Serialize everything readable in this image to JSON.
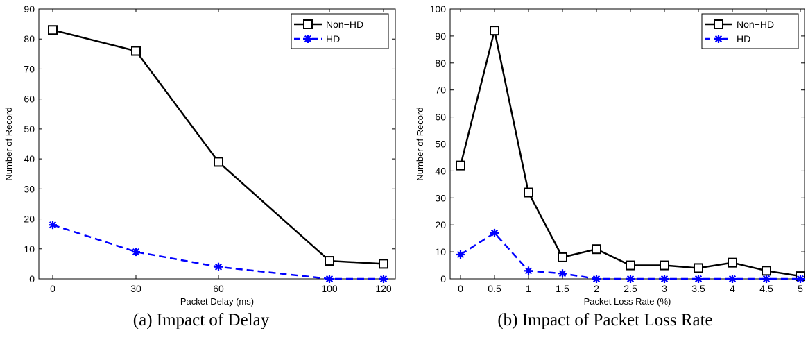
{
  "chart_data": [
    {
      "type": "line",
      "caption": "(a) Impact of Delay",
      "xlabel": "Packet Delay (ms)",
      "ylabel": "Number of Record",
      "x": [
        0,
        30,
        60,
        100,
        120
      ],
      "x_tick_labels": [
        "0",
        "30",
        "60",
        "100",
        "120"
      ],
      "x_scale": "categorical",
      "ylim": [
        0,
        90
      ],
      "y_ticks": [
        0,
        10,
        20,
        30,
        40,
        50,
        60,
        70,
        80,
        90
      ],
      "legend_position": "top-right",
      "series": [
        {
          "name": "Non−HD",
          "values": [
            83,
            76,
            39,
            6,
            5
          ],
          "color": "#000000",
          "line": "solid",
          "marker": "square"
        },
        {
          "name": "HD",
          "values": [
            18,
            9,
            4,
            0,
            0
          ],
          "color": "#0000ff",
          "line": "dashed",
          "marker": "asterisk"
        }
      ]
    },
    {
      "type": "line",
      "caption": "(b) Impact of Packet Loss Rate",
      "xlabel": "Packet Loss Rate (%)",
      "ylabel": "Number of Record",
      "x": [
        0,
        0.5,
        1,
        1.5,
        2,
        2.5,
        3,
        3.5,
        4,
        4.5,
        5
      ],
      "x_tick_labels": [
        "0",
        "0.5",
        "1",
        "1.5",
        "2",
        "2.5",
        "3",
        "3.5",
        "4",
        "4.5",
        "5"
      ],
      "x_scale": "linear",
      "xlim": [
        -0.1,
        5
      ],
      "ylim": [
        0,
        100
      ],
      "y_ticks": [
        0,
        10,
        20,
        30,
        40,
        50,
        60,
        70,
        80,
        90,
        100
      ],
      "legend_position": "top-right",
      "series": [
        {
          "name": "Non−HD",
          "values": [
            42,
            92,
            32,
            8,
            11,
            5,
            5,
            4,
            6,
            3,
            1
          ],
          "color": "#000000",
          "line": "solid",
          "marker": "square"
        },
        {
          "name": "HD",
          "values": [
            9,
            17,
            3,
            2,
            0,
            0,
            0,
            0,
            0,
            0,
            0
          ],
          "color": "#0000ff",
          "line": "dashed",
          "marker": "asterisk"
        }
      ]
    }
  ]
}
